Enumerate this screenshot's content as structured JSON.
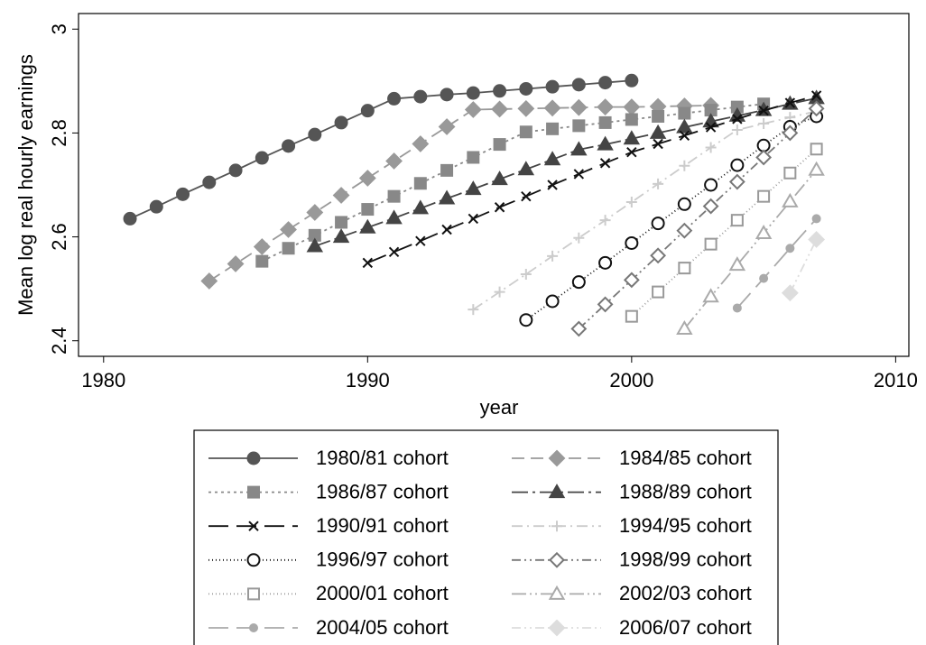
{
  "chart_data": {
    "type": "line",
    "xlabel": "year",
    "ylabel": "Mean log real hourly earnings",
    "xlim": [
      1979.05,
      2010.5
    ],
    "ylim": [
      2.37,
      3.03
    ],
    "xticks": [
      1980,
      1990,
      2000,
      2010
    ],
    "yticks": [
      {
        "value": 2.4,
        "label": "2.4"
      },
      2.6,
      2.8,
      3
    ],
    "grid": false,
    "legend": "bottom",
    "series": [
      {
        "name": "1980/81 cohort",
        "color": "#555555",
        "marker": "circle",
        "filled": true,
        "line_style": "solid",
        "x": [
          1981,
          1982,
          1983,
          1984,
          1985,
          1986,
          1987,
          1988,
          1989,
          1990,
          1991,
          1992,
          1993,
          1994,
          1995,
          1996,
          1997,
          1998,
          1999,
          2000
        ],
        "values": [
          2.635,
          2.658,
          2.682,
          2.705,
          2.728,
          2.752,
          2.775,
          2.797,
          2.82,
          2.843,
          2.866,
          2.87,
          2.874,
          2.877,
          2.881,
          2.885,
          2.889,
          2.893,
          2.897,
          2.901
        ]
      },
      {
        "name": "1984/85 cohort",
        "color": "#999999",
        "marker": "diamond",
        "filled": true,
        "line_style": "dash",
        "x": [
          1984,
          1985,
          1986,
          1987,
          1988,
          1989,
          1990,
          1991,
          1992,
          1993,
          1994,
          1995,
          1996,
          1997,
          1998,
          1999,
          2000,
          2001,
          2002,
          2003
        ],
        "values": [
          2.515,
          2.548,
          2.581,
          2.614,
          2.647,
          2.68,
          2.713,
          2.746,
          2.779,
          2.812,
          2.845,
          2.846,
          2.847,
          2.848,
          2.849,
          2.85,
          2.85,
          2.851,
          2.852,
          2.853
        ]
      },
      {
        "name": "1986/87 cohort",
        "color": "#888888",
        "marker": "square",
        "filled": true,
        "line_style": "dot",
        "x": [
          1986,
          1987,
          1988,
          1989,
          1990,
          1991,
          1992,
          1993,
          1994,
          1995,
          1996,
          1997,
          1998,
          1999,
          2000,
          2001,
          2002,
          2003,
          2004,
          2005
        ],
        "values": [
          2.553,
          2.578,
          2.603,
          2.628,
          2.653,
          2.678,
          2.703,
          2.728,
          2.753,
          2.778,
          2.802,
          2.808,
          2.814,
          2.82,
          2.826,
          2.832,
          2.838,
          2.844,
          2.85,
          2.856
        ]
      },
      {
        "name": "1988/89 cohort",
        "color": "#444444",
        "marker": "triangle",
        "filled": true,
        "line_style": "longdash-dot",
        "x": [
          1988,
          1989,
          1990,
          1991,
          1992,
          1993,
          1994,
          1995,
          1996,
          1997,
          1998,
          1999,
          2000,
          2001,
          2002,
          2003,
          2004,
          2005,
          2006,
          2007
        ],
        "values": [
          2.582,
          2.6,
          2.618,
          2.636,
          2.655,
          2.674,
          2.692,
          2.711,
          2.73,
          2.749,
          2.768,
          2.778,
          2.789,
          2.8,
          2.811,
          2.822,
          2.833,
          2.844,
          2.856,
          2.867
        ]
      },
      {
        "name": "1990/91 cohort",
        "color": "#111111",
        "marker": "x",
        "filled": true,
        "line_style": "longdash",
        "x": [
          1990,
          1991,
          1992,
          1993,
          1994,
          1995,
          1996,
          1997,
          1998,
          1999,
          2000,
          2001,
          2002,
          2003,
          2004,
          2005,
          2006,
          2007
        ],
        "values": [
          2.55,
          2.571,
          2.592,
          2.614,
          2.635,
          2.657,
          2.678,
          2.7,
          2.721,
          2.742,
          2.763,
          2.779,
          2.795,
          2.811,
          2.827,
          2.843,
          2.858,
          2.872
        ]
      },
      {
        "name": "1994/95 cohort",
        "color": "#cccccc",
        "marker": "plus",
        "filled": true,
        "line_style": "dashdot",
        "x": [
          1994,
          1995,
          1996,
          1997,
          1998,
          1999,
          2000,
          2001,
          2002,
          2003,
          2004,
          2005,
          2006,
          2007
        ],
        "values": [
          2.46,
          2.494,
          2.528,
          2.563,
          2.598,
          2.632,
          2.667,
          2.702,
          2.737,
          2.772,
          2.806,
          2.818,
          2.83,
          2.842
        ]
      },
      {
        "name": "1996/97 cohort",
        "color": "#111111",
        "marker": "circle",
        "filled": false,
        "line_style": "fine-dot",
        "x": [
          1996,
          1997,
          1998,
          1999,
          2000,
          2001,
          2002,
          2003,
          2004,
          2005,
          2006,
          2007
        ],
        "values": [
          2.44,
          2.476,
          2.513,
          2.55,
          2.588,
          2.626,
          2.663,
          2.7,
          2.738,
          2.776,
          2.812,
          2.832
        ]
      },
      {
        "name": "1998/99 cohort",
        "color": "#777777",
        "marker": "diamond",
        "filled": false,
        "line_style": "dash-dot-dot",
        "x": [
          1998,
          1999,
          2000,
          2001,
          2002,
          2003,
          2004,
          2005,
          2006,
          2007
        ],
        "values": [
          2.423,
          2.47,
          2.517,
          2.564,
          2.612,
          2.659,
          2.706,
          2.753,
          2.8,
          2.847
        ]
      },
      {
        "name": "2000/01 cohort",
        "color": "#999999",
        "marker": "square",
        "filled": false,
        "line_style": "fine-dot",
        "x": [
          2000,
          2001,
          2002,
          2003,
          2004,
          2005,
          2006,
          2007
        ],
        "values": [
          2.447,
          2.494,
          2.54,
          2.586,
          2.632,
          2.678,
          2.723,
          2.769
        ]
      },
      {
        "name": "2002/03 cohort",
        "color": "#aaaaaa",
        "marker": "triangle",
        "filled": false,
        "line_style": "longdash-dot-dot",
        "x": [
          2002,
          2003,
          2004,
          2005,
          2006,
          2007
        ],
        "values": [
          2.423,
          2.485,
          2.546,
          2.607,
          2.668,
          2.729
        ]
      },
      {
        "name": "2004/05 cohort",
        "color": "#aaaaaa",
        "marker": "dot",
        "filled": true,
        "line_style": "longdash",
        "x": [
          2004,
          2005,
          2006,
          2007
        ],
        "values": [
          2.463,
          2.52,
          2.578,
          2.635
        ]
      },
      {
        "name": "2006/07 cohort",
        "color": "#dddddd",
        "marker": "diamond",
        "filled": true,
        "line_style": "dash-dot-dot",
        "x": [
          2006,
          2007
        ],
        "values": [
          2.492,
          2.595
        ]
      }
    ]
  }
}
